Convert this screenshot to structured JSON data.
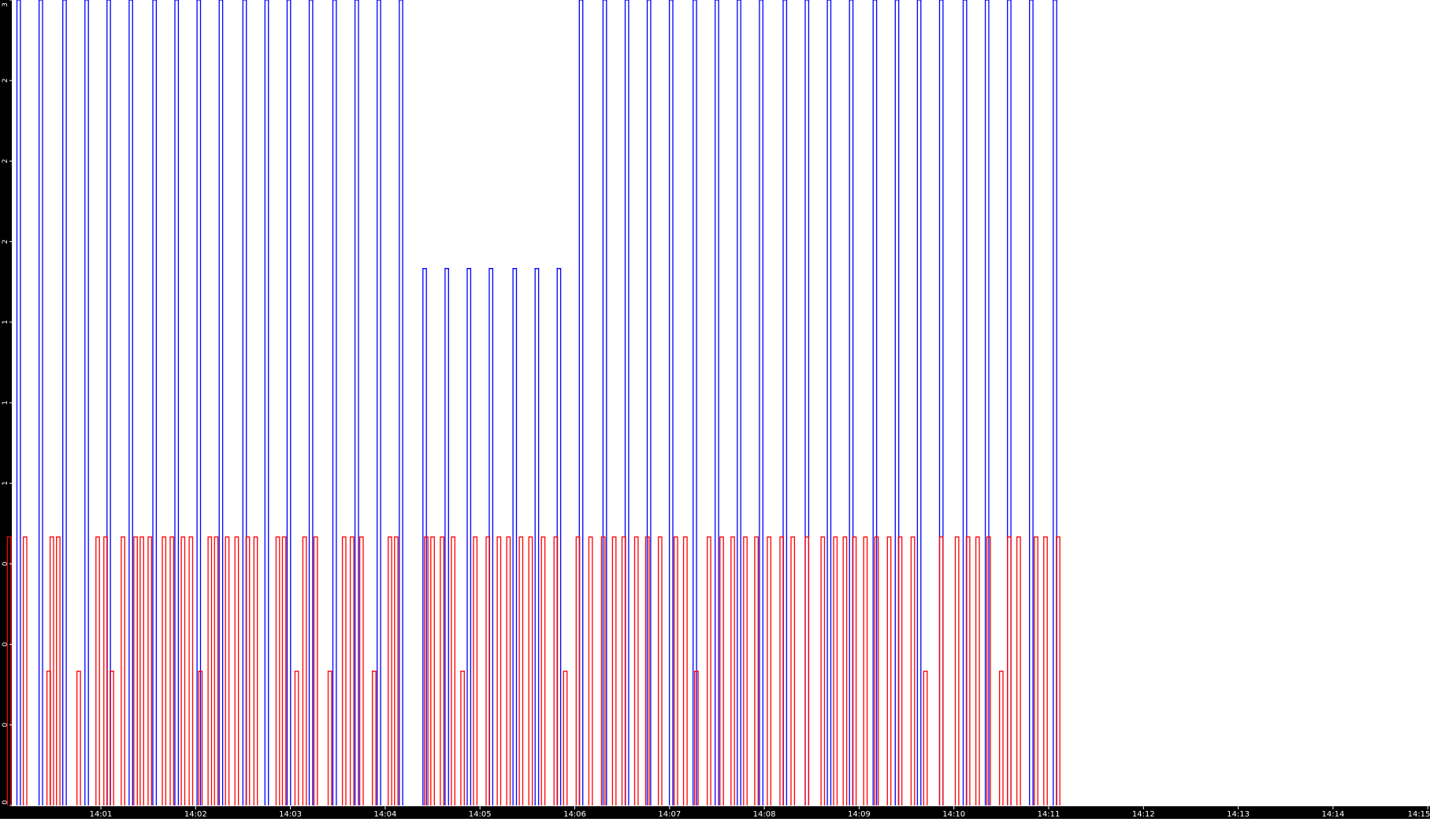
{
  "chart_data": {
    "type": "line",
    "title": "",
    "xlabel": "",
    "ylabel": "",
    "grid": false,
    "legend": "none",
    "x_start": "14:00:04",
    "x_end": "14:15:00",
    "y_range": [
      0,
      3.0
    ],
    "x_ticks": [
      "14:01",
      "14:02",
      "14:03",
      "14:04",
      "14:05",
      "14:06",
      "14:07",
      "14:08",
      "14:09",
      "14:10",
      "14:11",
      "14:12",
      "14:13",
      "14:14",
      "14:15"
    ],
    "y_ticks": [
      {
        "value": 0,
        "label": "0"
      },
      {
        "value": 0.3,
        "label": "0"
      },
      {
        "value": 0.6,
        "label": "0"
      },
      {
        "value": 0.9,
        "label": "0"
      },
      {
        "value": 1.2,
        "label": "1"
      },
      {
        "value": 1.5,
        "label": "1"
      },
      {
        "value": 1.8,
        "label": "1"
      },
      {
        "value": 2.1,
        "label": "2"
      },
      {
        "value": 2.4,
        "label": "2"
      },
      {
        "value": 2.7,
        "label": "2"
      },
      {
        "value": 3.0,
        "label": "3"
      }
    ],
    "series": [
      {
        "color": "#0000ff",
        "values_note": "",
        "pulses": [
          {
            "time": "14:00:08",
            "level": 3.0
          },
          {
            "time": "14:00:22",
            "level": 3.0
          },
          {
            "time": "14:00:37",
            "level": 3.0
          },
          {
            "time": "14:00:51",
            "level": 3.0
          },
          {
            "time": "14:01:05",
            "level": 3.0
          },
          {
            "time": "14:01:19",
            "level": 3.0
          },
          {
            "time": "14:01:34",
            "level": 3.0
          },
          {
            "time": "14:01:48",
            "level": 3.0
          },
          {
            "time": "14:02:02",
            "level": 3.0
          },
          {
            "time": "14:02:16",
            "level": 3.0
          },
          {
            "time": "14:02:31",
            "level": 3.0
          },
          {
            "time": "14:02:45",
            "level": 3.0
          },
          {
            "time": "14:02:59",
            "level": 3.0
          },
          {
            "time": "14:03:13",
            "level": 3.0
          },
          {
            "time": "14:03:28",
            "level": 3.0
          },
          {
            "time": "14:03:42",
            "level": 3.0
          },
          {
            "time": "14:03:56",
            "level": 3.0
          },
          {
            "time": "14:04:10",
            "level": 3.0
          },
          {
            "time": "14:04:25",
            "level": 2.0
          },
          {
            "time": "14:04:39",
            "level": 2.0
          },
          {
            "time": "14:04:53",
            "level": 2.0
          },
          {
            "time": "14:05:07",
            "level": 2.0
          },
          {
            "time": "14:05:22",
            "level": 2.0
          },
          {
            "time": "14:05:36",
            "level": 2.0
          },
          {
            "time": "14:05:50",
            "level": 2.0
          },
          {
            "time": "14:06:04",
            "level": 3.0
          },
          {
            "time": "14:06:19",
            "level": 3.0
          },
          {
            "time": "14:06:33",
            "level": 3.0
          },
          {
            "time": "14:06:47",
            "level": 3.0
          },
          {
            "time": "14:07:01",
            "level": 3.0
          },
          {
            "time": "14:07:16",
            "level": 3.0
          },
          {
            "time": "14:07:30",
            "level": 3.0
          },
          {
            "time": "14:07:44",
            "level": 3.0
          },
          {
            "time": "14:07:58",
            "level": 3.0
          },
          {
            "time": "14:08:13",
            "level": 3.0
          },
          {
            "time": "14:08:27",
            "level": 3.0
          },
          {
            "time": "14:08:41",
            "level": 3.0
          },
          {
            "time": "14:08:55",
            "level": 3.0
          },
          {
            "time": "14:09:10",
            "level": 3.0
          },
          {
            "time": "14:09:24",
            "level": 3.0
          },
          {
            "time": "14:09:38",
            "level": 3.0
          },
          {
            "time": "14:09:52",
            "level": 3.0
          },
          {
            "time": "14:10:07",
            "level": 3.0
          },
          {
            "time": "14:10:21",
            "level": 3.0
          },
          {
            "time": "14:10:35",
            "level": 3.0
          },
          {
            "time": "14:10:49",
            "level": 3.0
          },
          {
            "time": "14:11:04",
            "level": 3.0
          }
        ]
      },
      {
        "color": "#ff0000",
        "pulses": [
          {
            "time": "14:00:02",
            "level": 1.0
          },
          {
            "time": "14:00:12",
            "level": 1.0
          },
          {
            "time": "14:00:27",
            "level": 0.5
          },
          {
            "time": "14:00:29",
            "level": 1.0
          },
          {
            "time": "14:00:33",
            "level": 1.0
          },
          {
            "time": "14:00:46",
            "level": 0.5
          },
          {
            "time": "14:00:58",
            "level": 1.0
          },
          {
            "time": "14:01:03",
            "level": 1.0
          },
          {
            "time": "14:01:07",
            "level": 0.5
          },
          {
            "time": "14:01:14",
            "level": 1.0
          },
          {
            "time": "14:01:22",
            "level": 1.0
          },
          {
            "time": "14:01:26",
            "level": 1.0
          },
          {
            "time": "14:01:31",
            "level": 1.0
          },
          {
            "time": "14:01:40",
            "level": 1.0
          },
          {
            "time": "14:01:45",
            "level": 1.0
          },
          {
            "time": "14:01:52",
            "level": 1.0
          },
          {
            "time": "14:01:57",
            "level": 1.0
          },
          {
            "time": "14:02:03",
            "level": 0.5
          },
          {
            "time": "14:02:09",
            "level": 1.0
          },
          {
            "time": "14:02:13",
            "level": 1.0
          },
          {
            "time": "14:02:20",
            "level": 1.0
          },
          {
            "time": "14:02:26",
            "level": 1.0
          },
          {
            "time": "14:02:33",
            "level": 1.0
          },
          {
            "time": "14:02:38",
            "level": 1.0
          },
          {
            "time": "14:02:52",
            "level": 1.0
          },
          {
            "time": "14:02:56",
            "level": 1.0
          },
          {
            "time": "14:03:04",
            "level": 0.5
          },
          {
            "time": "14:03:09",
            "level": 1.0
          },
          {
            "time": "14:03:16",
            "level": 1.0
          },
          {
            "time": "14:03:25",
            "level": 0.5
          },
          {
            "time": "14:03:34",
            "level": 1.0
          },
          {
            "time": "14:03:39",
            "level": 1.0
          },
          {
            "time": "14:03:45",
            "level": 1.0
          },
          {
            "time": "14:03:53",
            "level": 0.5
          },
          {
            "time": "14:04:03",
            "level": 1.0
          },
          {
            "time": "14:04:07",
            "level": 1.0
          },
          {
            "time": "14:04:26",
            "level": 1.0
          },
          {
            "time": "14:04:30",
            "level": 1.0
          },
          {
            "time": "14:04:36",
            "level": 1.0
          },
          {
            "time": "14:04:43",
            "level": 1.0
          },
          {
            "time": "14:04:49",
            "level": 0.5
          },
          {
            "time": "14:04:57",
            "level": 1.0
          },
          {
            "time": "14:05:05",
            "level": 1.0
          },
          {
            "time": "14:05:12",
            "level": 1.0
          },
          {
            "time": "14:05:18",
            "level": 1.0
          },
          {
            "time": "14:05:26",
            "level": 1.0
          },
          {
            "time": "14:05:32",
            "level": 1.0
          },
          {
            "time": "14:05:40",
            "level": 1.0
          },
          {
            "time": "14:05:48",
            "level": 1.0
          },
          {
            "time": "14:05:54",
            "level": 0.5
          },
          {
            "time": "14:06:02",
            "level": 1.0
          },
          {
            "time": "14:06:10",
            "level": 1.0
          },
          {
            "time": "14:06:18",
            "level": 1.0
          },
          {
            "time": "14:06:25",
            "level": 1.0
          },
          {
            "time": "14:06:31",
            "level": 1.0
          },
          {
            "time": "14:06:39",
            "level": 1.0
          },
          {
            "time": "14:06:46",
            "level": 1.0
          },
          {
            "time": "14:06:54",
            "level": 1.0
          },
          {
            "time": "14:07:04",
            "level": 1.0
          },
          {
            "time": "14:07:10",
            "level": 1.0
          },
          {
            "time": "14:07:17",
            "level": 0.5
          },
          {
            "time": "14:07:25",
            "level": 1.0
          },
          {
            "time": "14:07:33",
            "level": 1.0
          },
          {
            "time": "14:07:40",
            "level": 1.0
          },
          {
            "time": "14:07:48",
            "level": 1.0
          },
          {
            "time": "14:07:55",
            "level": 1.0
          },
          {
            "time": "14:08:03",
            "level": 1.0
          },
          {
            "time": "14:08:11",
            "level": 1.0
          },
          {
            "time": "14:08:18",
            "level": 1.0
          },
          {
            "time": "14:08:27",
            "level": 1.0
          },
          {
            "time": "14:08:37",
            "level": 1.0
          },
          {
            "time": "14:08:45",
            "level": 1.0
          },
          {
            "time": "14:08:51",
            "level": 1.0
          },
          {
            "time": "14:08:57",
            "level": 1.0
          },
          {
            "time": "14:09:04",
            "level": 1.0
          },
          {
            "time": "14:09:11",
            "level": 1.0
          },
          {
            "time": "14:09:19",
            "level": 1.0
          },
          {
            "time": "14:09:26",
            "level": 1.0
          },
          {
            "time": "14:09:34",
            "level": 1.0
          },
          {
            "time": "14:09:42",
            "level": 0.5
          },
          {
            "time": "14:09:52",
            "level": 1.0
          },
          {
            "time": "14:10:02",
            "level": 1.0
          },
          {
            "time": "14:10:09",
            "level": 1.0
          },
          {
            "time": "14:10:15",
            "level": 1.0
          },
          {
            "time": "14:10:22",
            "level": 1.0
          },
          {
            "time": "14:10:30",
            "level": 0.5
          },
          {
            "time": "14:10:35",
            "level": 1.0
          },
          {
            "time": "14:10:41",
            "level": 1.0
          },
          {
            "time": "14:10:52",
            "level": 1.0
          },
          {
            "time": "14:10:58",
            "level": 1.0
          },
          {
            "time": "14:11:06",
            "level": 1.0
          }
        ]
      }
    ]
  }
}
